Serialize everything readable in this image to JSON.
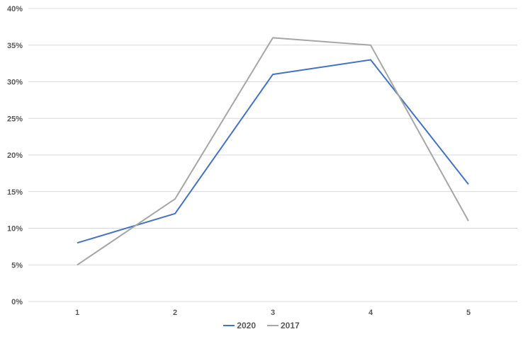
{
  "chart_data": {
    "type": "line",
    "x": [
      "1",
      "2",
      "3",
      "4",
      "5"
    ],
    "series": [
      {
        "name": "2020",
        "color": "#4472C4",
        "values": [
          8,
          12,
          31,
          33,
          16
        ]
      },
      {
        "name": "2017",
        "color": "#A6A6A6",
        "values": [
          5,
          14,
          36,
          35,
          11
        ]
      }
    ],
    "y_ticks": [
      "0%",
      "5%",
      "10%",
      "15%",
      "20%",
      "25%",
      "30%",
      "35%",
      "40%"
    ],
    "ylim": [
      0,
      40
    ],
    "title": "",
    "xlabel": "",
    "ylabel": "",
    "grid": "horizontal",
    "legend_position": "bottom-center"
  },
  "colors": {
    "grid": "#D9D9D9",
    "axis_text": "#595959",
    "background": "#FFFFFF"
  }
}
